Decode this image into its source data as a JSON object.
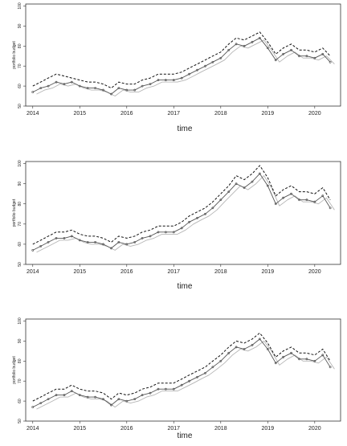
{
  "chart_data": [
    {
      "type": "line",
      "xlabel": "time",
      "ylabel": "portfolio budget",
      "xlim": [
        2013.85,
        2020.55
      ],
      "ylim": [
        50,
        101
      ],
      "x_ticks": [
        "2014",
        "2015",
        "2016",
        "2017",
        "2018",
        "2019",
        "2020"
      ],
      "y_ticks": [
        "50",
        "60",
        "70",
        "80",
        "90",
        "100"
      ],
      "grid": false,
      "legend": "none",
      "series": [
        {
          "style": "solid-dark-with-markers",
          "color": "#555555",
          "x": [
            2014.0,
            2014.17,
            2014.33,
            2014.5,
            2014.67,
            2014.83,
            2015.0,
            2015.17,
            2015.33,
            2015.5,
            2015.67,
            2015.83,
            2016.0,
            2016.17,
            2016.33,
            2016.5,
            2016.67,
            2016.83,
            2017.0,
            2017.17,
            2017.33,
            2017.5,
            2017.67,
            2017.83,
            2018.0,
            2018.17,
            2018.33,
            2018.5,
            2018.67,
            2018.83,
            2019.0,
            2019.17,
            2019.33,
            2019.5,
            2019.67,
            2019.83,
            2020.0,
            2020.17,
            2020.33
          ],
          "y": [
            57,
            59,
            60,
            62,
            61,
            62,
            60,
            59,
            59,
            58,
            56,
            59,
            58,
            58,
            60,
            61,
            63,
            63,
            63,
            64,
            66,
            68,
            70,
            72,
            74,
            78,
            81,
            80,
            82,
            84,
            79,
            73,
            76,
            78,
            75,
            75,
            74,
            76,
            72
          ]
        },
        {
          "style": "dashed-upper",
          "color": "#111111",
          "x": [
            2014.0,
            2014.17,
            2014.33,
            2014.5,
            2014.67,
            2014.83,
            2015.0,
            2015.17,
            2015.33,
            2015.5,
            2015.67,
            2015.83,
            2016.0,
            2016.17,
            2016.33,
            2016.5,
            2016.67,
            2016.83,
            2017.0,
            2017.17,
            2017.33,
            2017.5,
            2017.67,
            2017.83,
            2018.0,
            2018.17,
            2018.33,
            2018.5,
            2018.67,
            2018.83,
            2019.0,
            2019.17,
            2019.33,
            2019.5,
            2019.67,
            2019.83,
            2020.0,
            2020.17,
            2020.33
          ],
          "y": [
            60,
            62,
            64,
            66,
            65,
            64,
            63,
            62,
            62,
            61,
            59,
            62,
            61,
            61,
            63,
            64,
            66,
            66,
            66,
            67,
            69,
            71,
            73,
            75,
            77,
            81,
            84,
            83,
            85,
            87,
            82,
            76,
            79,
            81,
            78,
            78,
            77,
            79,
            75
          ]
        },
        {
          "style": "solid-light",
          "color": "#b5b5b5",
          "x": [
            2014.08,
            2014.25,
            2014.42,
            2014.58,
            2014.75,
            2014.92,
            2015.08,
            2015.25,
            2015.42,
            2015.58,
            2015.75,
            2015.92,
            2016.08,
            2016.25,
            2016.42,
            2016.58,
            2016.75,
            2016.92,
            2017.08,
            2017.25,
            2017.42,
            2017.58,
            2017.75,
            2017.92,
            2018.08,
            2018.25,
            2018.42,
            2018.58,
            2018.75,
            2018.92,
            2019.08,
            2019.25,
            2019.42,
            2019.58,
            2019.75,
            2019.92,
            2020.08,
            2020.25,
            2020.42
          ],
          "y": [
            56,
            58,
            59,
            61,
            60,
            61,
            59,
            58,
            58,
            57,
            55,
            58,
            57,
            57,
            59,
            60,
            62,
            62,
            62,
            63,
            65,
            67,
            69,
            71,
            73,
            77,
            80,
            79,
            81,
            83,
            78,
            72,
            75,
            77,
            74,
            74,
            73,
            75,
            71
          ]
        }
      ]
    },
    {
      "type": "line",
      "xlabel": "time",
      "ylabel": "portfolio budget",
      "xlim": [
        2013.85,
        2020.55
      ],
      "ylim": [
        50,
        101
      ],
      "x_ticks": [
        "2014",
        "2015",
        "2016",
        "2017",
        "2018",
        "2019",
        "2020"
      ],
      "y_ticks": [
        "50",
        "60",
        "70",
        "80",
        "90",
        "100"
      ],
      "grid": false,
      "legend": "none",
      "series": [
        {
          "style": "solid-dark-with-markers",
          "color": "#555555",
          "x": [
            2014.0,
            2014.17,
            2014.33,
            2014.5,
            2014.67,
            2014.83,
            2015.0,
            2015.17,
            2015.33,
            2015.5,
            2015.67,
            2015.83,
            2016.0,
            2016.17,
            2016.33,
            2016.5,
            2016.67,
            2016.83,
            2017.0,
            2017.17,
            2017.33,
            2017.5,
            2017.67,
            2017.83,
            2018.0,
            2018.17,
            2018.33,
            2018.5,
            2018.67,
            2018.83,
            2019.0,
            2019.17,
            2019.33,
            2019.5,
            2019.67,
            2019.83,
            2020.0,
            2020.17,
            2020.33
          ],
          "y": [
            57,
            59,
            61,
            63,
            63,
            64,
            62,
            61,
            61,
            60,
            58,
            61,
            60,
            61,
            63,
            64,
            66,
            66,
            66,
            68,
            71,
            73,
            75,
            78,
            82,
            86,
            90,
            88,
            91,
            95,
            89,
            80,
            83,
            85,
            82,
            82,
            81,
            84,
            78
          ]
        },
        {
          "style": "dashed-upper",
          "color": "#111111",
          "x": [
            2014.0,
            2014.17,
            2014.33,
            2014.5,
            2014.67,
            2014.83,
            2015.0,
            2015.17,
            2015.33,
            2015.5,
            2015.67,
            2015.83,
            2016.0,
            2016.17,
            2016.33,
            2016.5,
            2016.67,
            2016.83,
            2017.0,
            2017.17,
            2017.33,
            2017.5,
            2017.67,
            2017.83,
            2018.0,
            2018.17,
            2018.33,
            2018.5,
            2018.67,
            2018.83,
            2019.0,
            2019.17,
            2019.33,
            2019.5,
            2019.67,
            2019.83,
            2020.0,
            2020.17,
            2020.33
          ],
          "y": [
            60,
            62,
            64,
            66,
            66,
            67,
            65,
            64,
            64,
            63,
            61,
            64,
            63,
            64,
            66,
            67,
            69,
            69,
            69,
            71,
            74,
            76,
            78,
            81,
            85,
            89,
            94,
            92,
            95,
            99,
            93,
            84,
            87,
            89,
            86,
            86,
            85,
            88,
            82
          ]
        },
        {
          "style": "solid-light",
          "color": "#b5b5b5",
          "x": [
            2014.08,
            2014.25,
            2014.42,
            2014.58,
            2014.75,
            2014.92,
            2015.08,
            2015.25,
            2015.42,
            2015.58,
            2015.75,
            2015.92,
            2016.08,
            2016.25,
            2016.42,
            2016.58,
            2016.75,
            2016.92,
            2017.08,
            2017.25,
            2017.42,
            2017.58,
            2017.75,
            2017.92,
            2018.08,
            2018.25,
            2018.42,
            2018.58,
            2018.75,
            2018.92,
            2019.08,
            2019.25,
            2019.42,
            2019.58,
            2019.75,
            2019.92,
            2020.08,
            2020.25,
            2020.42
          ],
          "y": [
            56,
            58,
            60,
            62,
            62,
            63,
            61,
            60,
            60,
            59,
            57,
            60,
            59,
            60,
            62,
            63,
            65,
            65,
            65,
            67,
            70,
            72,
            74,
            77,
            81,
            85,
            89,
            87,
            90,
            94,
            88,
            79,
            82,
            84,
            81,
            81,
            80,
            83,
            77
          ]
        }
      ]
    },
    {
      "type": "line",
      "xlabel": "time",
      "ylabel": "portfolio budget",
      "xlim": [
        2013.85,
        2020.55
      ],
      "ylim": [
        50,
        101
      ],
      "x_ticks": [
        "2014",
        "2015",
        "2016",
        "2017",
        "2018",
        "2019",
        "2020"
      ],
      "y_ticks": [
        "50",
        "60",
        "70",
        "80",
        "90",
        "100"
      ],
      "grid": false,
      "legend": "none",
      "series": [
        {
          "style": "solid-dark-with-markers",
          "color": "#555555",
          "x": [
            2014.0,
            2014.17,
            2014.33,
            2014.5,
            2014.67,
            2014.83,
            2015.0,
            2015.17,
            2015.33,
            2015.5,
            2015.67,
            2015.83,
            2016.0,
            2016.17,
            2016.33,
            2016.5,
            2016.67,
            2016.83,
            2017.0,
            2017.17,
            2017.33,
            2017.5,
            2017.67,
            2017.83,
            2018.0,
            2018.17,
            2018.33,
            2018.5,
            2018.67,
            2018.83,
            2019.0,
            2019.17,
            2019.33,
            2019.5,
            2019.67,
            2019.83,
            2020.0,
            2020.17,
            2020.33
          ],
          "y": [
            57,
            59,
            61,
            63,
            63,
            65,
            63,
            62,
            62,
            61,
            58,
            61,
            60,
            61,
            63,
            64,
            66,
            66,
            66,
            68,
            70,
            72,
            74,
            77,
            80,
            84,
            87,
            86,
            88,
            91,
            86,
            79,
            82,
            84,
            81,
            81,
            80,
            83,
            77
          ]
        },
        {
          "style": "dashed-upper",
          "color": "#111111",
          "x": [
            2014.0,
            2014.17,
            2014.33,
            2014.5,
            2014.67,
            2014.83,
            2015.0,
            2015.17,
            2015.33,
            2015.5,
            2015.67,
            2015.83,
            2016.0,
            2016.17,
            2016.33,
            2016.5,
            2016.67,
            2016.83,
            2017.0,
            2017.17,
            2017.33,
            2017.5,
            2017.67,
            2017.83,
            2018.0,
            2018.17,
            2018.33,
            2018.5,
            2018.67,
            2018.83,
            2019.0,
            2019.17,
            2019.33,
            2019.5,
            2019.67,
            2019.83,
            2020.0,
            2020.17,
            2020.33
          ],
          "y": [
            60,
            62,
            64,
            66,
            66,
            68,
            66,
            65,
            65,
            64,
            61,
            64,
            63,
            64,
            66,
            67,
            69,
            69,
            69,
            71,
            73,
            75,
            77,
            80,
            83,
            87,
            90,
            89,
            91,
            94,
            89,
            82,
            85,
            87,
            84,
            84,
            83,
            86,
            80
          ]
        },
        {
          "style": "solid-light",
          "color": "#b5b5b5",
          "x": [
            2014.08,
            2014.25,
            2014.42,
            2014.58,
            2014.75,
            2014.92,
            2015.08,
            2015.25,
            2015.42,
            2015.58,
            2015.75,
            2015.92,
            2016.08,
            2016.25,
            2016.42,
            2016.58,
            2016.75,
            2016.92,
            2017.08,
            2017.25,
            2017.42,
            2017.58,
            2017.75,
            2017.92,
            2018.08,
            2018.25,
            2018.42,
            2018.58,
            2018.75,
            2018.92,
            2019.08,
            2019.25,
            2019.42,
            2019.58,
            2019.75,
            2019.92,
            2020.08,
            2020.25,
            2020.42
          ],
          "y": [
            56,
            58,
            60,
            62,
            62,
            64,
            62,
            61,
            61,
            60,
            57,
            60,
            59,
            60,
            62,
            63,
            65,
            65,
            65,
            67,
            69,
            71,
            73,
            76,
            79,
            83,
            86,
            85,
            87,
            90,
            85,
            78,
            81,
            83,
            80,
            80,
            79,
            82,
            76
          ]
        }
      ]
    }
  ]
}
